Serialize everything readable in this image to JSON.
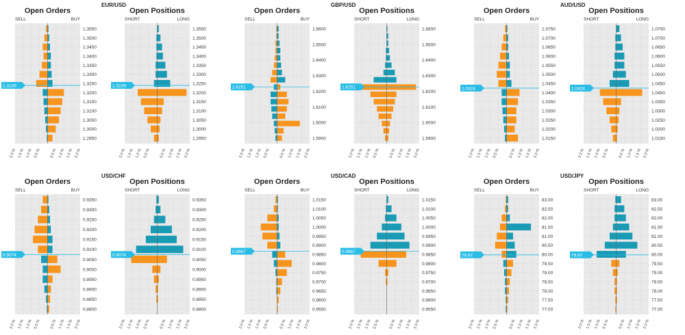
{
  "colors": {
    "orange": "#f7941d",
    "teal": "#1a9bb5",
    "cyan": "#29bde6",
    "grid": "#c8c8c8",
    "bg": "#e9e9e9"
  },
  "x_ticks": [
    "2.0 %",
    "1.5 %",
    "1.0 %",
    "0.5 %",
    "0.5 %",
    "1.0 %",
    "1.5 %",
    "2.0 %"
  ],
  "pairs": [
    {
      "pair": "EUR/USD",
      "price": "1.3239",
      "orders": {
        "title": "Open Orders",
        "left": "SELL",
        "right": "BUY"
      },
      "positions": {
        "title": "Open Positions",
        "left": "SHORT",
        "right": "LONG"
      },
      "ticks": [
        "1.3550",
        "1.3500",
        "1.3450",
        "1.3400",
        "1.3350",
        "1.3300",
        "1.3250",
        "1.3200",
        "1.3150",
        "1.3100",
        "1.3050",
        "1.3000",
        "1.2950"
      ]
    },
    {
      "pair": "GBP/USD",
      "price": "1.6251",
      "orders": {
        "title": "Open Orders",
        "left": "SELL",
        "right": "BUY"
      },
      "positions": {
        "title": "Open Positions",
        "left": "SHORT",
        "right": "LONG"
      },
      "ticks": [
        "1.6600",
        "1.6500",
        "1.6400",
        "1.6300",
        "1.6200",
        "1.6100",
        "1.6000",
        "1.5900"
      ]
    },
    {
      "pair": "AUD/USD",
      "price": "1.0424",
      "orders": {
        "title": "Open Orders",
        "left": "SELL",
        "right": "BUY"
      },
      "positions": {
        "title": "Open Positions",
        "left": "SHORT",
        "right": "LONG"
      },
      "ticks": [
        "1.0750",
        "1.0700",
        "1.0650",
        "1.0600",
        "1.0550",
        "1.0500",
        "1.0450",
        "1.0400",
        "1.0350",
        "1.0300",
        "1.0250",
        "1.0200",
        "1.0150"
      ]
    },
    {
      "pair": "USD/CHF",
      "price": "0.9074",
      "orders": {
        "title": "Open Orders",
        "left": "SELL",
        "right": "BUY"
      },
      "positions": {
        "title": "Open Positions",
        "left": "SHORT",
        "right": "LONG"
      },
      "ticks": [
        "0.9350",
        "0.9300",
        "0.9250",
        "0.9200",
        "0.9150",
        "0.9100",
        "0.9050",
        "0.9000",
        "0.8950",
        "0.8900",
        "0.8850",
        "0.8800"
      ]
    },
    {
      "pair": "USD/CAD",
      "price": "0.9867",
      "orders": {
        "title": "Open Orders",
        "left": "SELL",
        "right": "BUY"
      },
      "positions": {
        "title": "Open Positions",
        "left": "SHORT",
        "right": "LONG"
      },
      "ticks": [
        "1.0150",
        "1.0100",
        "1.0050",
        "1.0000",
        "0.9950",
        "0.9900",
        "0.9850",
        "0.9800",
        "0.9750",
        "0.9700",
        "0.9650",
        "0.9600",
        "0.9550"
      ]
    },
    {
      "pair": "USD/JPY",
      "price": "79.97",
      "orders": {
        "title": "Open Orders",
        "left": "SELL",
        "right": "BUY"
      },
      "positions": {
        "title": "Open Positions",
        "left": "SHORT",
        "right": "LONG"
      },
      "ticks": [
        "83.00",
        "82.50",
        "82.00",
        "81.50",
        "81.00",
        "80.50",
        "80.00",
        "79.50",
        "79.00",
        "78.50",
        "78.00",
        "77.50",
        "77.00"
      ]
    }
  ],
  "chart_data": [
    {
      "type": "bar",
      "pair": "EUR/USD",
      "xlim": [
        -2.0,
        2.0
      ],
      "orders": {
        "levels": [
          1.355,
          1.35,
          1.345,
          1.34,
          1.335,
          1.33,
          1.325,
          1.32,
          1.315,
          1.31,
          1.305,
          1.3,
          1.295
        ],
        "sell": [
          0.1,
          0.2,
          0.3,
          0.25,
          0.35,
          0.5,
          0.7,
          0.3,
          0.25,
          0.2,
          0.15,
          0.1,
          0.05
        ],
        "buy": [
          0.05,
          0.1,
          0.15,
          0.2,
          0.2,
          0.25,
          0.3,
          1.0,
          0.9,
          0.8,
          0.7,
          0.5,
          0.3
        ]
      },
      "positions": {
        "levels": [
          1.355,
          1.35,
          1.345,
          1.34,
          1.335,
          1.33,
          1.325,
          1.32,
          1.315,
          1.31,
          1.305,
          1.3,
          1.295
        ],
        "short": [
          0.0,
          0.05,
          0.05,
          0.05,
          0.1,
          0.1,
          0.2,
          1.2,
          1.0,
          0.8,
          0.6,
          0.4,
          0.2
        ],
        "long": [
          0.1,
          0.2,
          0.3,
          0.35,
          0.5,
          0.6,
          0.8,
          1.8,
          0.4,
          0.3,
          0.2,
          0.15,
          0.1
        ]
      }
    },
    {
      "type": "bar",
      "pair": "GBP/USD",
      "xlim": [
        -2.0,
        2.0
      ],
      "orders": {
        "levels": [
          1.665,
          1.66,
          1.655,
          1.65,
          1.645,
          1.64,
          1.635,
          1.63,
          1.625,
          1.62,
          1.615,
          1.61,
          1.605,
          1.6,
          1.595,
          1.59
        ],
        "sell": [
          0.05,
          0.05,
          0.1,
          0.1,
          0.15,
          0.2,
          0.3,
          0.4,
          0.2,
          0.4,
          0.4,
          0.35,
          0.3,
          0.2,
          0.15,
          0.1
        ],
        "buy": [
          0.1,
          0.1,
          0.15,
          0.2,
          0.2,
          0.25,
          0.3,
          0.5,
          0.2,
          0.6,
          0.7,
          0.6,
          0.5,
          1.4,
          0.4,
          0.3
        ]
      },
      "positions": {
        "levels": [
          1.665,
          1.66,
          1.655,
          1.65,
          1.645,
          1.64,
          1.635,
          1.63,
          1.625,
          1.62,
          1.615,
          1.61,
          1.605,
          1.6,
          1.595,
          1.59
        ],
        "short": [
          0.0,
          0.0,
          0.0,
          0.05,
          0.05,
          0.1,
          0.2,
          0.8,
          1.5,
          1.0,
          0.8,
          0.6,
          0.5,
          0.3,
          0.2,
          0.1
        ],
        "long": [
          0.05,
          0.1,
          0.1,
          0.15,
          0.2,
          0.3,
          0.5,
          0.6,
          1.8,
          0.6,
          0.5,
          0.4,
          0.3,
          0.2,
          0.15,
          0.1
        ]
      }
    },
    {
      "type": "bar",
      "pair": "AUD/USD",
      "xlim": [
        -2.0,
        2.0
      ],
      "orders": {
        "levels": [
          1.075,
          1.07,
          1.065,
          1.06,
          1.055,
          1.05,
          1.045,
          1.04,
          1.035,
          1.03,
          1.025,
          1.02,
          1.015
        ],
        "sell": [
          0.1,
          0.2,
          0.3,
          0.4,
          0.5,
          0.6,
          0.5,
          0.3,
          0.3,
          0.25,
          0.2,
          0.15,
          0.1
        ],
        "buy": [
          0.05,
          0.1,
          0.1,
          0.15,
          0.2,
          0.2,
          0.3,
          0.8,
          0.7,
          0.6,
          0.6,
          0.5,
          0.7
        ]
      },
      "positions": {
        "levels": [
          1.075,
          1.07,
          1.065,
          1.06,
          1.055,
          1.05,
          1.045,
          1.04,
          1.035,
          1.03,
          1.025,
          1.02,
          1.015
        ],
        "short": [
          0.0,
          0.05,
          0.05,
          0.1,
          0.1,
          0.2,
          0.4,
          1.0,
          0.8,
          0.6,
          0.4,
          0.3,
          0.2
        ],
        "long": [
          0.2,
          0.3,
          0.4,
          0.5,
          0.5,
          0.6,
          0.8,
          1.6,
          0.3,
          0.2,
          0.15,
          0.1,
          0.05
        ]
      }
    },
    {
      "type": "bar",
      "pair": "USD/CHF",
      "xlim": [
        -2.0,
        2.0
      ],
      "orders": {
        "levels": [
          0.935,
          0.93,
          0.925,
          0.92,
          0.915,
          0.91,
          0.905,
          0.9,
          0.895,
          0.89,
          0.885,
          0.88
        ],
        "sell": [
          0.3,
          0.4,
          0.6,
          0.8,
          0.9,
          0.6,
          0.4,
          0.3,
          0.3,
          0.2,
          0.1,
          0.05
        ],
        "buy": [
          0.05,
          0.1,
          0.15,
          0.2,
          0.3,
          0.3,
          0.6,
          0.8,
          0.3,
          0.2,
          0.15,
          0.1
        ]
      },
      "positions": {
        "levels": [
          0.935,
          0.93,
          0.925,
          0.92,
          0.915,
          0.91,
          0.905,
          0.9,
          0.895,
          0.89,
          0.885,
          0.88
        ],
        "short": [
          0.05,
          0.1,
          0.2,
          0.4,
          0.7,
          1.3,
          1.6,
          0.3,
          0.2,
          0.1,
          0.05,
          0.0
        ],
        "long": [
          0.1,
          0.2,
          0.5,
          0.9,
          1.2,
          1.6,
          0.6,
          0.2,
          0.1,
          0.05,
          0.05,
          0.0
        ]
      }
    },
    {
      "type": "bar",
      "pair": "USD/CAD",
      "xlim": [
        -2.0,
        2.0
      ],
      "orders": {
        "levels": [
          1.015,
          1.01,
          1.005,
          1.0,
          0.995,
          0.99,
          0.985,
          0.98,
          0.975,
          0.97,
          0.965,
          0.96,
          0.955
        ],
        "sell": [
          0.1,
          0.2,
          0.6,
          1.0,
          0.9,
          0.6,
          0.3,
          0.2,
          0.1,
          0.05,
          0.05,
          0.0,
          0.0
        ],
        "buy": [
          0.05,
          0.05,
          0.1,
          0.1,
          0.15,
          0.2,
          0.5,
          0.9,
          0.6,
          0.3,
          0.2,
          0.1,
          0.05
        ]
      },
      "positions": {
        "levels": [
          1.015,
          1.01,
          1.005,
          1.0,
          0.995,
          0.99,
          0.985,
          0.98,
          0.975,
          0.97,
          0.965,
          0.96,
          0.955
        ],
        "short": [
          0.0,
          0.05,
          0.1,
          0.3,
          0.6,
          1.0,
          1.6,
          0.5,
          0.1,
          0.05,
          0.0,
          0.0,
          0.0
        ],
        "long": [
          0.1,
          0.3,
          0.6,
          0.9,
          1.1,
          1.4,
          1.2,
          0.6,
          0.1,
          0.05,
          0.0,
          0.0,
          0.0
        ]
      }
    },
    {
      "type": "bar",
      "pair": "USD/JPY",
      "xlim": [
        -2.0,
        2.0
      ],
      "orders": {
        "levels": [
          83.0,
          82.5,
          82.0,
          81.5,
          81.0,
          80.5,
          80.0,
          79.5,
          79.0,
          78.5,
          78.0,
          77.5,
          77.0
        ],
        "sell": [
          0.05,
          0.1,
          0.3,
          0.4,
          0.6,
          0.7,
          0.3,
          0.2,
          0.15,
          0.1,
          0.1,
          0.05,
          0.05
        ],
        "buy": [
          0.1,
          0.1,
          0.2,
          1.5,
          0.4,
          0.5,
          0.6,
          0.4,
          0.3,
          0.2,
          0.15,
          0.1,
          0.05
        ]
      },
      "positions": {
        "levels": [
          83.0,
          82.5,
          82.0,
          81.5,
          81.0,
          80.5,
          80.0,
          79.5,
          79.0,
          78.5,
          78.0,
          77.5,
          77.0
        ],
        "short": [
          0.05,
          0.1,
          0.1,
          0.2,
          0.4,
          0.7,
          1.2,
          0.3,
          0.2,
          0.1,
          0.1,
          0.05,
          0.05
        ],
        "long": [
          0.3,
          0.5,
          0.6,
          0.8,
          1.0,
          1.3,
          0.6,
          0.2,
          0.1,
          0.05,
          0.05,
          0.05,
          0.0
        ]
      }
    }
  ]
}
